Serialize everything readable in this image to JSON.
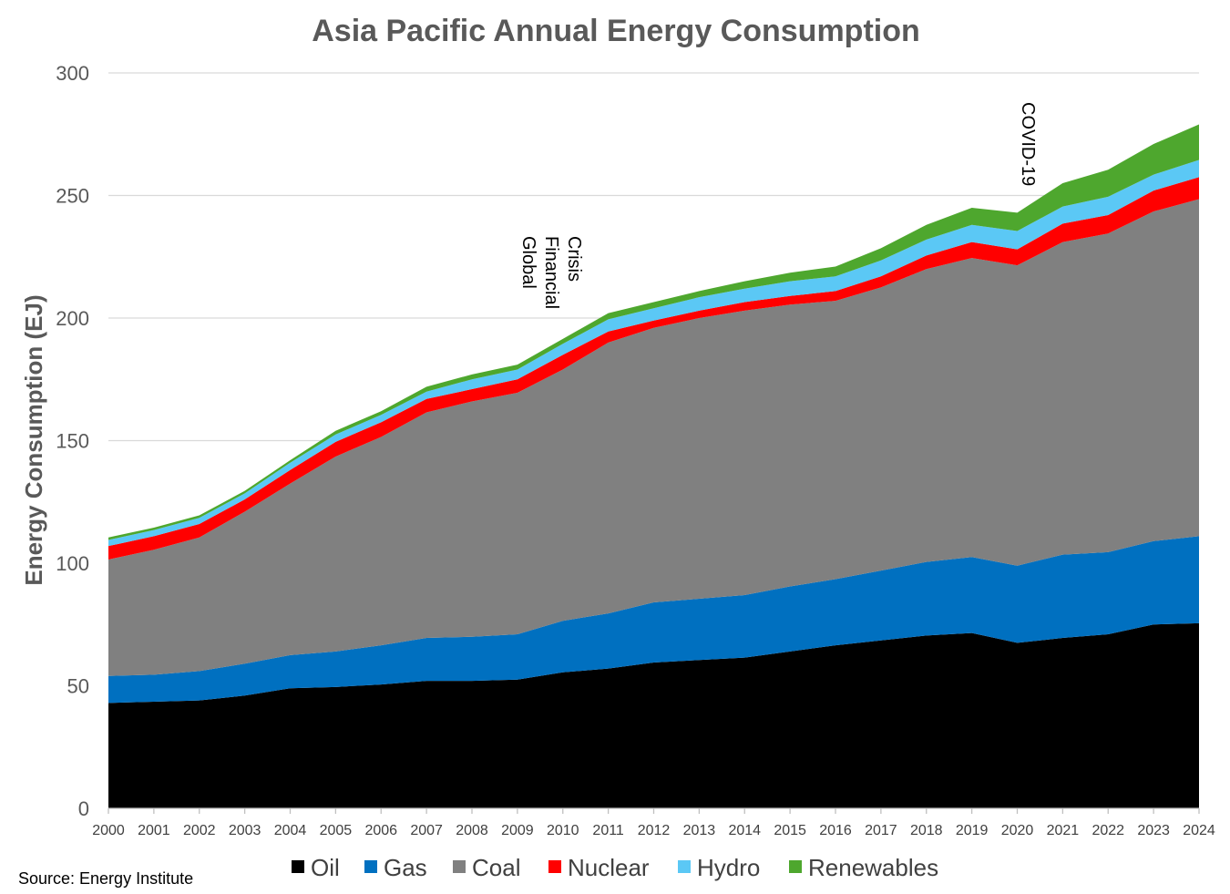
{
  "chart_data": {
    "type": "area",
    "stacked": true,
    "title": "Asia Pacific Annual Energy Consumption",
    "xlabel": "",
    "ylabel": "Energy Consumption (EJ)",
    "ylim": [
      0,
      300
    ],
    "yticks": [
      0,
      50,
      100,
      150,
      200,
      250,
      300
    ],
    "grid": true,
    "legend_position": "bottom",
    "categories": [
      "2000",
      "2001",
      "2002",
      "2003",
      "2004",
      "2005",
      "2006",
      "2007",
      "2008",
      "2009",
      "2010",
      "2011",
      "2012",
      "2013",
      "2014",
      "2015",
      "2016",
      "2017",
      "2018",
      "2019",
      "2020",
      "2021",
      "2022",
      "2023",
      "2024"
    ],
    "series": [
      {
        "name": "Oil",
        "color": "#000000",
        "values": [
          43,
          43.5,
          44,
          46,
          49,
          49.5,
          50.5,
          52,
          52,
          52.5,
          55.5,
          57,
          59.5,
          60.5,
          61.5,
          64,
          66.5,
          68.5,
          70.5,
          71.5,
          67.5,
          69.5,
          71,
          75,
          75.5
        ]
      },
      {
        "name": "Gas",
        "color": "#0070c0",
        "values": [
          11,
          11,
          12,
          13,
          13.5,
          14.5,
          16,
          17.5,
          18,
          18.5,
          21,
          22.5,
          24.5,
          25,
          25.5,
          26.5,
          27,
          28.5,
          30,
          31,
          31.5,
          34,
          33.5,
          34,
          35.5
        ]
      },
      {
        "name": "Coal",
        "color": "#808080",
        "values": [
          47.5,
          51,
          54.5,
          62,
          70,
          79.5,
          85,
          92,
          96,
          98.5,
          102.5,
          110.5,
          112,
          114.5,
          116,
          115,
          113.5,
          115.5,
          119.5,
          122,
          122.5,
          127.5,
          130,
          134.5,
          137.5
        ]
      },
      {
        "name": "Nuclear",
        "color": "#ff0000",
        "values": [
          5.5,
          5.5,
          5.5,
          5,
          5.5,
          6,
          6,
          5.5,
          5,
          5.5,
          6,
          4.5,
          3,
          3,
          3.5,
          3.5,
          4,
          4.5,
          5.5,
          6.5,
          6.5,
          7.5,
          7.5,
          8.5,
          9
        ]
      },
      {
        "name": "Hydro",
        "color": "#5bc8f5",
        "values": [
          2.5,
          2.5,
          2.5,
          2.5,
          3,
          3,
          3,
          3,
          4,
          4,
          4.5,
          5,
          5,
          5.5,
          5.5,
          6,
          6,
          6.5,
          6.5,
          7,
          7.5,
          7,
          7.5,
          6.5,
          7
        ]
      },
      {
        "name": "Renewables",
        "color": "#4ea72e",
        "values": [
          1,
          1,
          1,
          1,
          1,
          1.5,
          1.5,
          2,
          2,
          2,
          2,
          2.5,
          2.5,
          2.5,
          3,
          3.5,
          4,
          5,
          6,
          7,
          7.5,
          9.5,
          11,
          12.5,
          14.5
        ]
      }
    ],
    "annotations": [
      {
        "text": [
          "Global",
          "Financial",
          "Crisis"
        ],
        "x": "2009",
        "rotation": 90
      },
      {
        "text": [
          "COVID-19"
        ],
        "x": "2020",
        "rotation": 90
      }
    ]
  },
  "source": "Source: Energy Institute"
}
